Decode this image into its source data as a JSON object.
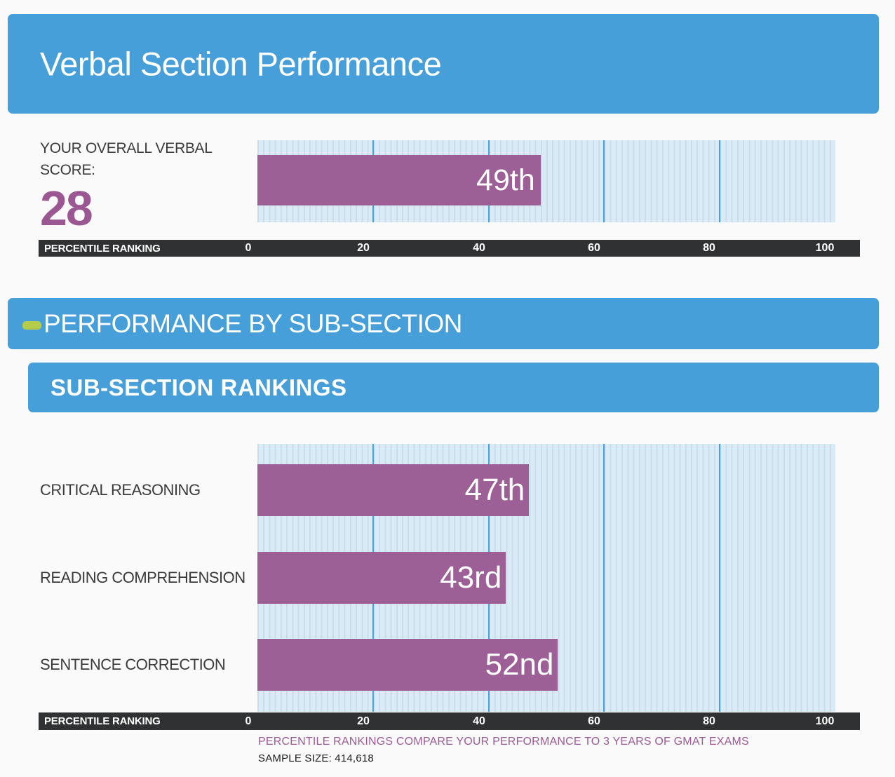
{
  "page": {
    "background": "#fafafa"
  },
  "header": {
    "title": "Verbal Section Performance",
    "banner_color": "#479fd9"
  },
  "overall": {
    "label_line1": "YOUR OVERALL VERBAL",
    "label_line2": "SCORE:",
    "score": "28",
    "score_color": "#9a5792"
  },
  "sections": {
    "performance_banner": "PERFORMANCE BY SUB-SECTION",
    "rankings_banner": "SUB-SECTION RANKINGS",
    "dash_icon_color": "#b5cc4a"
  },
  "axis": {
    "label": "PERCENTILE RANKING",
    "ticks": [
      "0",
      "20",
      "40",
      "60",
      "80",
      "100"
    ],
    "bar_color": "#2f3132"
  },
  "footnotes": {
    "percentile_note": "PERCENTILE RANKINGS COMPARE YOUR PERFORMANCE TO 3 YEARS OF GMAT EXAMS",
    "sample_size": "SAMPLE SIZE: 414,618"
  },
  "chart_data": [
    {
      "type": "bar",
      "orientation": "horizontal",
      "title": "Your overall verbal score percentile",
      "categories": [
        "YOUR OVERALL VERBAL SCORE: 28"
      ],
      "values": [
        49
      ],
      "value_labels": [
        "49th"
      ],
      "xlabel": "PERCENTILE RANKING",
      "xlim": [
        0,
        100
      ],
      "x_ticks": [
        0,
        20,
        40,
        60,
        80,
        100
      ],
      "grid": true,
      "legend": "none",
      "bar_color": "#9c5f96",
      "track_color": "#d9ebf7",
      "gridline_color": "#45a2de"
    },
    {
      "type": "bar",
      "orientation": "horizontal",
      "title": "Sub-section rankings",
      "categories": [
        "CRITICAL REASONING",
        "READING COMPREHENSION",
        "SENTENCE CORRECTION"
      ],
      "values": [
        47,
        43,
        52
      ],
      "value_labels": [
        "47th",
        "43rd",
        "52nd"
      ],
      "xlabel": "PERCENTILE RANKING",
      "xlim": [
        0,
        100
      ],
      "x_ticks": [
        0,
        20,
        40,
        60,
        80,
        100
      ],
      "grid": true,
      "legend": "none",
      "bar_color": "#9c5f96",
      "track_color": "#d9ebf7",
      "gridline_color": "#45a2de"
    }
  ]
}
